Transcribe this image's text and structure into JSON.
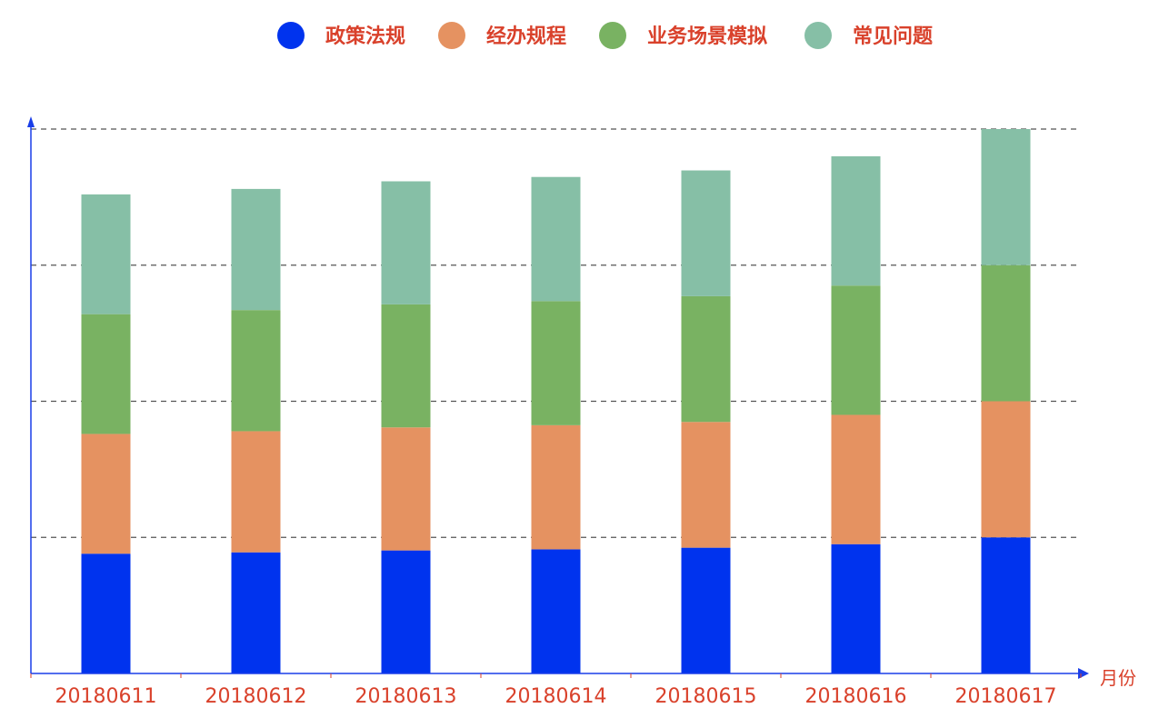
{
  "chart_data": {
    "type": "bar",
    "stacked": true,
    "title": "",
    "xlabel": "月份",
    "ylabel": "",
    "categories": [
      "20180611",
      "20180612",
      "20180613",
      "20180614",
      "20180615",
      "20180616",
      "20180617"
    ],
    "ylim": [
      0,
      200
    ],
    "grid": true,
    "legend_position": "top-center",
    "series": [
      {
        "name": "政策法规",
        "color": "#0033ee",
        "values": [
          44,
          44.5,
          45.2,
          45.6,
          46.2,
          47.5,
          50
        ]
      },
      {
        "name": "经办规程",
        "color": "#e59261",
        "values": [
          44,
          44.5,
          45.2,
          45.6,
          46.2,
          47.5,
          50
        ]
      },
      {
        "name": "业务场景模拟",
        "color": "#79b262",
        "values": [
          44,
          44.5,
          45.2,
          45.6,
          46.2,
          47.5,
          50
        ]
      },
      {
        "name": "常见问题",
        "color": "#86bfa6",
        "values": [
          44,
          44.5,
          45.2,
          45.6,
          46.2,
          47.5,
          50
        ]
      }
    ]
  },
  "colors": {
    "axis": "#1a3ee8",
    "label_text": "#d9412b",
    "legend_text": "#d9412b",
    "grid": "#555555"
  }
}
